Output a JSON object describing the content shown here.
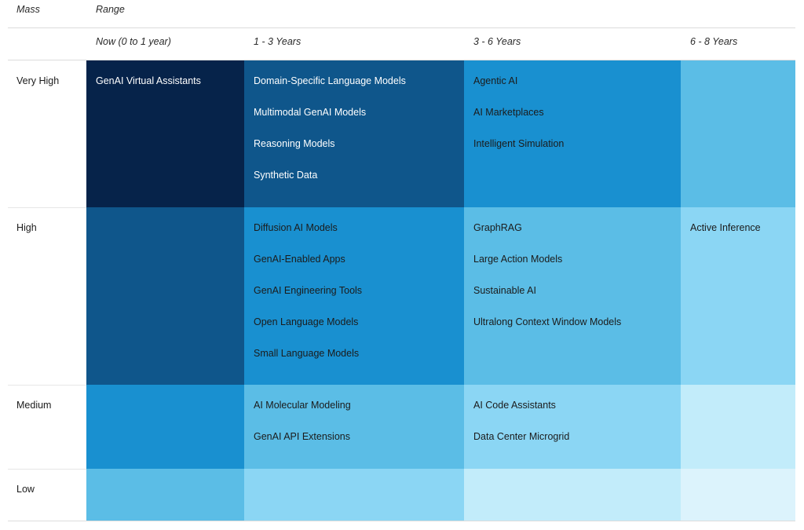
{
  "header": {
    "mass_label": "Mass",
    "range_label": "Range"
  },
  "chart_data": {
    "type": "table",
    "columns": [
      "Now (0 to 1 year)",
      "1 - 3 Years",
      "3 - 6 Years",
      "6 - 8 Years"
    ],
    "rows": [
      {
        "label": "Very High",
        "cells": [
          {
            "shade": 5,
            "items": [
              "GenAI Virtual Assistants"
            ]
          },
          {
            "shade": 4,
            "items": [
              "Domain-Specific Language Models",
              "Multimodal GenAI Models",
              "Reasoning Models",
              "Synthetic Data"
            ]
          },
          {
            "shade": 3,
            "items": [
              "Agentic AI",
              "AI Marketplaces",
              "Intelligent Simulation"
            ]
          },
          {
            "shade": 2,
            "items": []
          }
        ]
      },
      {
        "label": "High",
        "cells": [
          {
            "shade": 4,
            "items": []
          },
          {
            "shade": 3,
            "items": [
              "Diffusion AI Models",
              "GenAI-Enabled Apps",
              "GenAI Engineering Tools",
              "Open Language Models",
              "Small Language Models"
            ]
          },
          {
            "shade": 2,
            "items": [
              "GraphRAG",
              "Large Action Models",
              "Sustainable AI",
              "Ultralong Context Window Models"
            ]
          },
          {
            "shade": 1,
            "items": [
              "Active Inference"
            ]
          }
        ]
      },
      {
        "label": "Medium",
        "cells": [
          {
            "shade": 3,
            "items": []
          },
          {
            "shade": 2,
            "items": [
              "AI Molecular Modeling",
              "GenAI API Extensions"
            ]
          },
          {
            "shade": 1,
            "items": [
              "AI Code Assistants",
              "Data Center Microgrid"
            ]
          },
          {
            "shade": 0,
            "items": []
          }
        ]
      },
      {
        "label": "Low",
        "cells": [
          {
            "shade": 2,
            "items": []
          },
          {
            "shade": 1,
            "items": []
          },
          {
            "shade": 0,
            "items": []
          },
          {
            "shade": -1,
            "items": []
          }
        ]
      }
    ],
    "shade_colors": {
      "-1": "#dcf3fc",
      "0": "#c2ecfa",
      "1": "#8bd6f4",
      "2": "#5bbde6",
      "3": "#1990d0",
      "4": "#0f568b",
      "5": "#06234a"
    },
    "text_colors": {
      "dark_bg": "#ffffff",
      "light_bg": "#1b1b1b"
    }
  }
}
